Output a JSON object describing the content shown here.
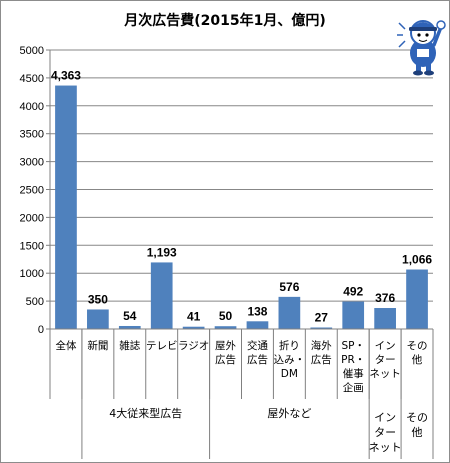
{
  "chart_data": {
    "type": "bar",
    "title": "月次広告費(2015年1月、億円)",
    "ylim": [
      0,
      5000
    ],
    "yticks": [
      0,
      500,
      1000,
      1500,
      2000,
      2500,
      3000,
      3500,
      4000,
      4500,
      5000
    ],
    "categories": [
      [
        "全体"
      ],
      [
        "新聞"
      ],
      [
        "雑誌"
      ],
      [
        "テレビ"
      ],
      [
        "ラジオ"
      ],
      [
        "屋外",
        "広告"
      ],
      [
        "交通",
        "広告"
      ],
      [
        "折り",
        "込み・",
        "DM"
      ],
      [
        "海外",
        "広告"
      ],
      [
        "SP・",
        "PR・",
        "催事",
        "企画"
      ],
      [
        "イン",
        "ター",
        "ネット"
      ],
      [
        "その",
        "他"
      ]
    ],
    "values": [
      4363,
      350,
      54,
      1193,
      41,
      50,
      138,
      576,
      27,
      492,
      376,
      1066
    ],
    "value_labels": [
      "4,363",
      "350",
      "54",
      "1,193",
      "41",
      "50",
      "138",
      "576",
      "27",
      "492",
      "376",
      "1,066"
    ],
    "groups": [
      {
        "label": [
          "4大従来型広告"
        ],
        "start": 1,
        "end": 4
      },
      {
        "label": [
          "屋外など"
        ],
        "start": 5,
        "end": 9
      },
      {
        "label": [
          "イン",
          "ター",
          "ネット"
        ],
        "start": 10,
        "end": 10
      },
      {
        "label": [
          "その",
          "他"
        ],
        "start": 11,
        "end": 11
      }
    ],
    "grid": true,
    "colors": {
      "bar": "#4f81bd",
      "grid": "#878787",
      "axis": "#808080"
    }
  },
  "mascot": {
    "icon": "mascot-character-icon"
  }
}
